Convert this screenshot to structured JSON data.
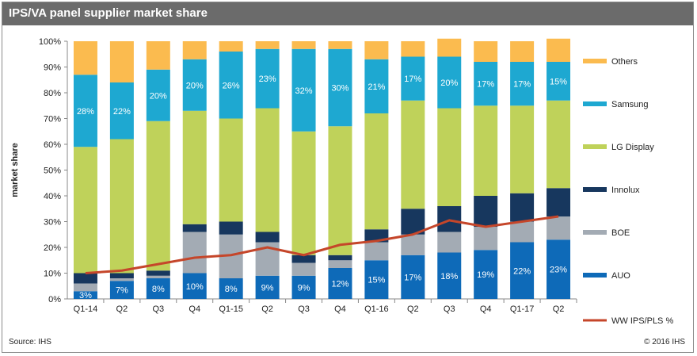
{
  "title": "IPS/VA panel supplier market share",
  "source": "Source: IHS",
  "copyright": "© 2016 IHS",
  "chart_data": {
    "type": "bar",
    "stacked": true,
    "ylabel": "market share",
    "ylim": [
      0,
      100
    ],
    "yticks": [
      "0%",
      "10%",
      "20%",
      "30%",
      "40%",
      "50%",
      "60%",
      "70%",
      "80%",
      "90%",
      "100%"
    ],
    "categories": [
      "Q1-14",
      "Q2",
      "Q3",
      "Q4",
      "Q1-15",
      "Q2",
      "Q3",
      "Q4",
      "Q1-16",
      "Q2",
      "Q3",
      "Q4",
      "Q1-17",
      "Q2"
    ],
    "series": [
      {
        "name": "AUO",
        "color": "#0e6ab8",
        "values": [
          3,
          7,
          8,
          10,
          8,
          9,
          9,
          12,
          15,
          17,
          18,
          19,
          22,
          23
        ],
        "labels": [
          "3%",
          "7%",
          "8%",
          "10%",
          "8%",
          "9%",
          "9%",
          "12%",
          "15%",
          "17%",
          "18%",
          "19%",
          "22%",
          "23%"
        ]
      },
      {
        "name": "BOE",
        "color": "#a3abb4",
        "values": [
          3,
          1,
          1,
          16,
          17,
          13,
          5,
          3,
          7,
          8,
          8,
          9,
          8,
          9
        ]
      },
      {
        "name": "Innolux",
        "color": "#17375e",
        "values": [
          4,
          2,
          2,
          3,
          5,
          4,
          3,
          2,
          5,
          10,
          10,
          12,
          11,
          11
        ]
      },
      {
        "name": "LG Display",
        "color": "#bfd25a",
        "values": [
          49,
          52,
          58,
          44,
          40,
          48,
          48,
          50,
          45,
          42,
          38,
          35,
          34,
          34
        ]
      },
      {
        "name": "Samsung",
        "color": "#1ea8d1",
        "values": [
          28,
          22,
          20,
          20,
          26,
          23,
          32,
          30,
          21,
          17,
          20,
          17,
          17,
          15
        ],
        "labels": [
          "28%",
          "22%",
          "20%",
          "20%",
          "26%",
          "23%",
          "32%",
          "30%",
          "21%",
          "17%",
          "20%",
          "17%",
          "17%",
          "15%"
        ]
      },
      {
        "name": "Others",
        "color": "#fbbb4f",
        "values": [
          13,
          16,
          11,
          7,
          4,
          3,
          3,
          3,
          7,
          6,
          7,
          8,
          8,
          9
        ]
      }
    ],
    "line": {
      "name": "WW IPS/PLS %",
      "color": "#c5462a",
      "values": [
        10,
        11,
        13.5,
        16,
        17,
        20,
        17,
        21,
        22.5,
        25,
        30.5,
        28,
        30,
        32
      ]
    },
    "legend_placement": "right",
    "grid": false
  }
}
